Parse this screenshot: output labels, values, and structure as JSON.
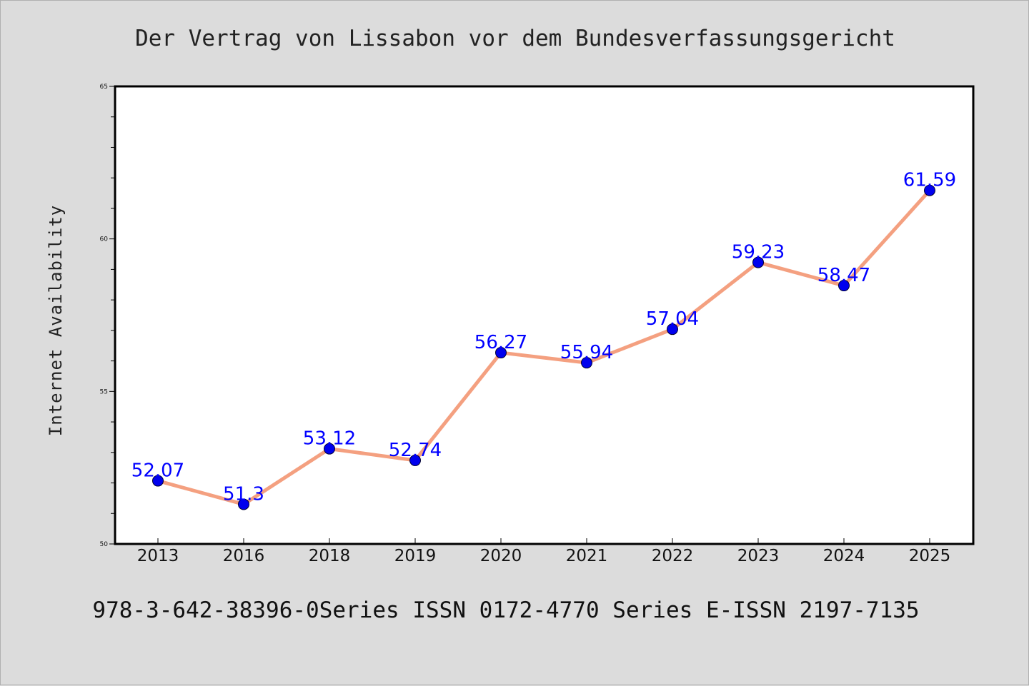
{
  "colors": {
    "background": "#dcdcdc",
    "plot_background": "#ffffff",
    "line": "#f4a080",
    "marker": "#0000ee",
    "data_label": "#0000ff"
  },
  "footer": "978-3-642-38396-0Series ISSN 0172-4770 Series E-ISSN 2197-7135",
  "chart_data": {
    "type": "line",
    "title": "Der Vertrag von Lissabon vor dem Bundesverfassungsgericht",
    "xlabel": "",
    "ylabel": "Internet Availability",
    "categories": [
      "2013",
      "2016",
      "2018",
      "2019",
      "2020",
      "2021",
      "2022",
      "2023",
      "2024",
      "2025"
    ],
    "series": [
      {
        "values": [
          52.07,
          51.3,
          53.12,
          52.74,
          56.27,
          55.94,
          57.04,
          59.23,
          58.47,
          61.59
        ]
      }
    ],
    "data_labels": [
      "52.07",
      "51.3",
      "53.12",
      "52.74",
      "56.27",
      "55.94",
      "57.04",
      "59.23",
      "58.47",
      "61.59"
    ],
    "ylim": [
      50,
      65
    ],
    "yticks": [
      "50",
      "55",
      "60",
      "65"
    ],
    "grid": false,
    "legend": "none"
  }
}
